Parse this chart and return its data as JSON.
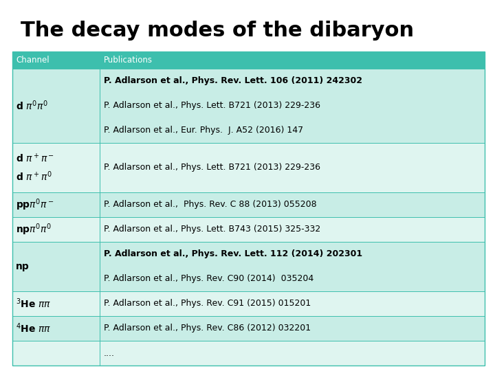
{
  "title": "The decay modes of the dibaryon",
  "title_fontsize": 22,
  "header_bg": "#3dbfad",
  "header_text_color": "#ffffff",
  "row_bg_odd": "#c8ede6",
  "row_bg_even": "#dff5f0",
  "last_row_bg": "#c8ede6",
  "border_color": "#3dbfad",
  "header": [
    "Channel",
    "Publications"
  ],
  "header_fontsize": 8.5,
  "channel_fontsize": 10,
  "pub_fontsize": 9,
  "rows": [
    {
      "channel": "d $\\pi^0\\pi^0$",
      "channel_lines": 1,
      "publications": [
        {
          "text": "P. Adlarson et al., Phys. Rev. Lett. 106 (2011) 242302",
          "bold": true
        },
        {
          "text": "P. Adlarson et al., Phys. Lett. B721 (2013) 229-236",
          "bold": false
        },
        {
          "text": "P. Adlarson et al., Eur. Phys.  J. A52 (2016) 147",
          "bold": false
        }
      ],
      "n_lines": 3
    },
    {
      "channel": "d $\\pi^+\\pi^-$\nd $\\pi^+\\pi^0$",
      "channel_lines": 2,
      "publications": [
        {
          "text": "P. Adlarson et al., Phys. Lett. B721 (2013) 229-236",
          "bold": false
        }
      ],
      "n_lines": 2
    },
    {
      "channel": "pp$\\pi^0\\pi^-$",
      "channel_lines": 1,
      "publications": [
        {
          "text": "P. Adlarson et al.,  Phys. Rev. C 88 (2013) 055208",
          "bold": false
        }
      ],
      "n_lines": 1
    },
    {
      "channel": "np$\\pi^0\\pi^0$",
      "channel_lines": 1,
      "publications": [
        {
          "text": "P. Adlarson et al., Phys. Lett. B743 (2015) 325-332",
          "bold": false
        }
      ],
      "n_lines": 1
    },
    {
      "channel": "np",
      "channel_lines": 1,
      "publications": [
        {
          "text": "P. Adlarson et al., Phys. Rev. Lett. 112 (2014) 202301",
          "bold": true
        },
        {
          "text": "P. Adlarson et al., Phys. Rev. C90 (2014)  035204",
          "bold": false
        }
      ],
      "n_lines": 2
    },
    {
      "channel": "$^3$He $\\pi\\pi$",
      "channel_lines": 1,
      "publications": [
        {
          "text": "P. Adlarson et al., Phys. Rev. C91 (2015) 015201",
          "bold": false
        }
      ],
      "n_lines": 1
    },
    {
      "channel": "$^4$He $\\pi\\pi$",
      "channel_lines": 1,
      "publications": [
        {
          "text": "P. Adlarson et al., Phys. Rev. C86 (2012) 032201",
          "bold": false
        }
      ],
      "n_lines": 1
    },
    {
      "channel": "",
      "channel_lines": 1,
      "publications": [
        {
          "text": "....",
          "bold": false
        }
      ],
      "n_lines": 1
    }
  ]
}
